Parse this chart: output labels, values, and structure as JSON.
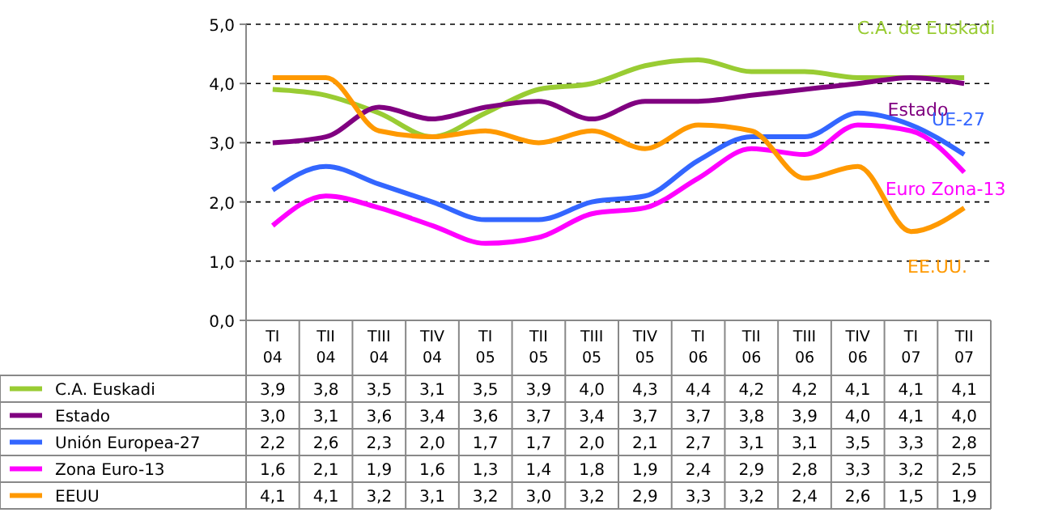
{
  "chart_data": {
    "type": "line",
    "categories": [
      "TI 04",
      "TII 04",
      "TIII 04",
      "TIV 04",
      "TI 05",
      "TII 05",
      "TIII 05",
      "TIV 05",
      "TI 06",
      "TII 06",
      "TIII 06",
      "TIV 06",
      "TI 07",
      "TII 07"
    ],
    "series": [
      {
        "name": "C.A. Euskadi",
        "color": "#99cc33",
        "values": [
          3.9,
          3.8,
          3.5,
          3.1,
          3.5,
          3.9,
          4.0,
          4.3,
          4.4,
          4.2,
          4.2,
          4.1,
          4.1,
          4.1
        ],
        "value_labels": [
          "3,9",
          "3,8",
          "3,5",
          "3,1",
          "3,5",
          "3,9",
          "4,0",
          "4,3",
          "4,4",
          "4,2",
          "4,2",
          "4,1",
          "4,1",
          "4,1"
        ]
      },
      {
        "name": "Estado",
        "color": "#800080",
        "values": [
          3.0,
          3.1,
          3.6,
          3.4,
          3.6,
          3.7,
          3.4,
          3.7,
          3.7,
          3.8,
          3.9,
          4.0,
          4.1,
          4.0
        ],
        "value_labels": [
          "3,0",
          "3,1",
          "3,6",
          "3,4",
          "3,6",
          "3,7",
          "3,4",
          "3,7",
          "3,7",
          "3,8",
          "3,9",
          "4,0",
          "4,1",
          "4,0"
        ]
      },
      {
        "name": "Unión Europea-27",
        "color": "#3366ff",
        "values": [
          2.2,
          2.6,
          2.3,
          2.0,
          1.7,
          1.7,
          2.0,
          2.1,
          2.7,
          3.1,
          3.1,
          3.5,
          3.3,
          2.8
        ],
        "value_labels": [
          "2,2",
          "2,6",
          "2,3",
          "2,0",
          "1,7",
          "1,7",
          "2,0",
          "2,1",
          "2,7",
          "3,1",
          "3,1",
          "3,5",
          "3,3",
          "2,8"
        ]
      },
      {
        "name": "Zona Euro-13",
        "color": "#ff00ff",
        "values": [
          1.6,
          2.1,
          1.9,
          1.6,
          1.3,
          1.4,
          1.8,
          1.9,
          2.4,
          2.9,
          2.8,
          3.3,
          3.2,
          2.5
        ],
        "value_labels": [
          "1,6",
          "2,1",
          "1,9",
          "1,6",
          "1,3",
          "1,4",
          "1,8",
          "1,9",
          "2,4",
          "2,9",
          "2,8",
          "3,3",
          "3,2",
          "2,5"
        ]
      },
      {
        "name": "EEUU",
        "color": "#ff9900",
        "values": [
          4.1,
          4.1,
          3.2,
          3.1,
          3.2,
          3.0,
          3.2,
          2.9,
          3.3,
          3.2,
          2.4,
          2.6,
          1.5,
          1.9
        ],
        "value_labels": [
          "4,1",
          "4,1",
          "3,2",
          "3,1",
          "3,2",
          "3,0",
          "3,2",
          "2,9",
          "3,3",
          "3,2",
          "2,4",
          "2,6",
          "1,5",
          "1,9"
        ]
      }
    ],
    "ylim": [
      0,
      5
    ],
    "yticks": [
      {
        "value": 0,
        "label": "0,0"
      },
      {
        "value": 1,
        "label": "1,0"
      },
      {
        "value": 2,
        "label": "2,0"
      },
      {
        "value": 3,
        "label": "3,0"
      },
      {
        "value": 4,
        "label": "4,0"
      },
      {
        "value": 5,
        "label": "5,0"
      }
    ],
    "grid": "y",
    "line_style": "solid",
    "marker": "none",
    "legend": "bottom",
    "annotations": [
      "C.A. de Euskadi",
      "Estado",
      "UE-27",
      "Euro Zona-13",
      "EE.UU."
    ]
  }
}
